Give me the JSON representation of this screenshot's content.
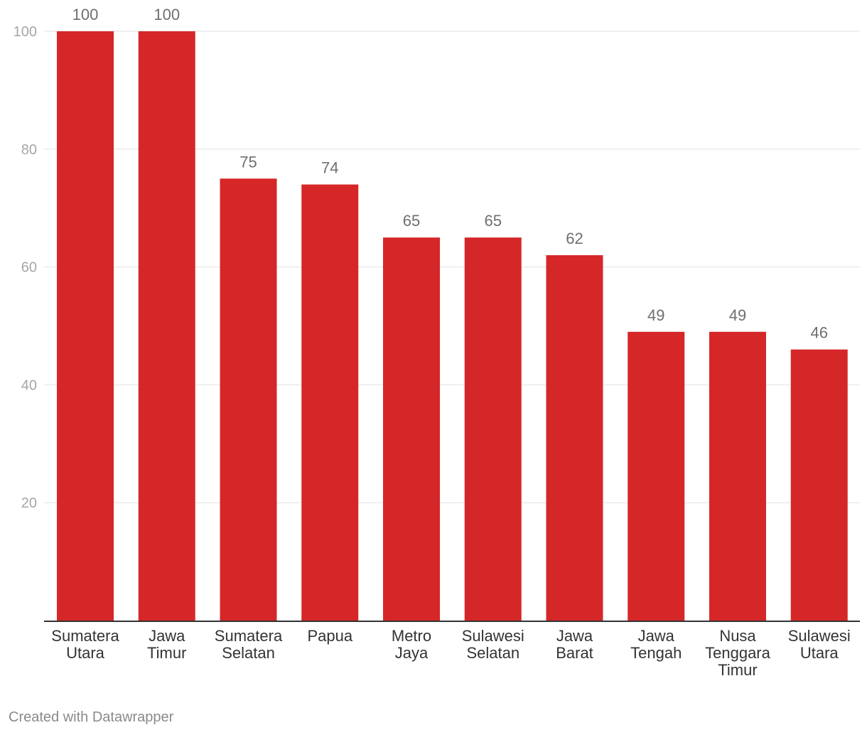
{
  "chart_data": {
    "type": "bar",
    "title": "",
    "xlabel": "",
    "ylabel": "",
    "ylim": [
      0,
      100
    ],
    "yticks": [
      20,
      40,
      60,
      80,
      100
    ],
    "categories": [
      [
        "Sumatera",
        "Utara"
      ],
      [
        "Jawa",
        "Timur"
      ],
      [
        "Sumatera",
        "Selatan"
      ],
      [
        "Papua"
      ],
      [
        "Metro",
        "Jaya"
      ],
      [
        "Sulawesi",
        "Selatan"
      ],
      [
        "Jawa",
        "Barat"
      ],
      [
        "Jawa",
        "Tengah"
      ],
      [
        "Nusa",
        "Tenggara",
        "Timur"
      ],
      [
        "Sulawesi",
        "Utara"
      ]
    ],
    "values": [
      100,
      100,
      75,
      74,
      65,
      65,
      62,
      49,
      49,
      46
    ],
    "bar_color": "#d62728",
    "grid": true,
    "legend": "none"
  },
  "footer": {
    "credit": "Created with Datawrapper"
  }
}
